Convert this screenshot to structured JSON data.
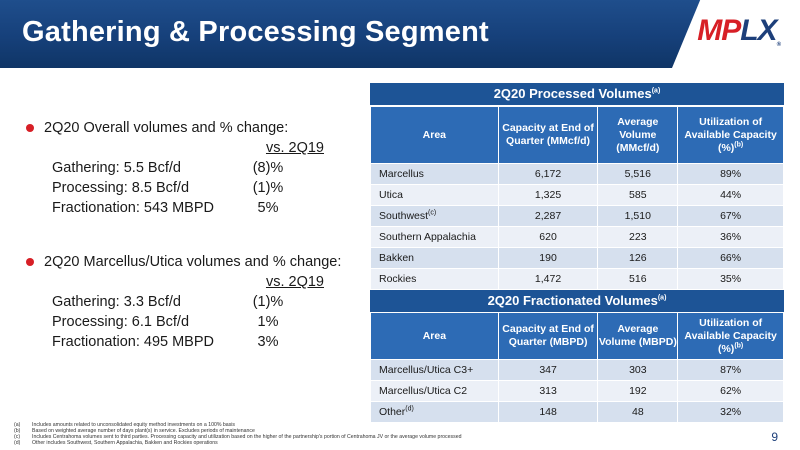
{
  "header": {
    "title": "Gathering & Processing Segment"
  },
  "logo": {
    "text_mp": "MP",
    "text_lx": "LX",
    "tm": "®"
  },
  "left": {
    "block1": {
      "heading": "2Q20 Overall volumes and % change:",
      "vs": "vs. 2Q19",
      "rows": [
        {
          "label": "Gathering: 5.5 Bcf/d",
          "value": "(8)%"
        },
        {
          "label": "Processing: 8.5 Bcf/d",
          "value": "(1)%"
        },
        {
          "label": "Fractionation: 543 MBPD",
          "value": "5%"
        }
      ]
    },
    "block2": {
      "heading": "2Q20 Marcellus/Utica volumes and % change:",
      "vs": "vs. 2Q19",
      "rows": [
        {
          "label": "Gathering: 3.3 Bcf/d",
          "value": "(1)%"
        },
        {
          "label": "Processing: 6.1 Bcf/d",
          "value": "1%"
        },
        {
          "label": "Fractionation: 495 MBPD",
          "value": "3%"
        }
      ]
    }
  },
  "processed": {
    "title": "2Q20 Processed Volumes",
    "title_note": "(a)",
    "headers": [
      "Area",
      "Capacity at End of Quarter (MMcf/d)",
      "Average Volume (MMcf/d)",
      "Utilization of Available Capacity (%)"
    ],
    "util_note": "(b)",
    "rows": [
      {
        "area": "Marcellus",
        "note": "",
        "capacity": "6,172",
        "volume": "5,516",
        "util": "89%"
      },
      {
        "area": "Utica",
        "note": "",
        "capacity": "1,325",
        "volume": "585",
        "util": "44%"
      },
      {
        "area": "Southwest",
        "note": "(c)",
        "capacity": "2,287",
        "volume": "1,510",
        "util": "67%"
      },
      {
        "area": "Southern Appalachia",
        "note": "",
        "capacity": "620",
        "volume": "223",
        "util": "36%"
      },
      {
        "area": "Bakken",
        "note": "",
        "capacity": "190",
        "volume": "126",
        "util": "66%"
      },
      {
        "area": "Rockies",
        "note": "",
        "capacity": "1,472",
        "volume": "516",
        "util": "35%"
      }
    ]
  },
  "fractionated": {
    "title": "2Q20 Fractionated Volumes",
    "title_note": "(a)",
    "headers": [
      "Area",
      "Capacity at End of Quarter (MBPD)",
      "Average Volume (MBPD)",
      "Utilization of Available Capacity (%)"
    ],
    "util_note": "(b)",
    "rows": [
      {
        "area": "Marcellus/Utica C3+",
        "note": "",
        "capacity": "347",
        "volume": "303",
        "util": "87%"
      },
      {
        "area": "Marcellus/Utica C2",
        "note": "",
        "capacity": "313",
        "volume": "192",
        "util": "62%"
      },
      {
        "area": "Other",
        "note": "(d)",
        "capacity": "148",
        "volume": "48",
        "util": "32%"
      }
    ]
  },
  "footnotes": [
    {
      "key": "(a)",
      "text": "Includes amounts related to unconsolidated equity method investments on a 100% basis"
    },
    {
      "key": "(b)",
      "text": "Based on weighted average number of days plant(s) in service. Excludes periods of maintenance"
    },
    {
      "key": "(c)",
      "text": "Includes Centrahoma volumes sent to third parties. Processing capacity and utilization based on the higher of the partnership's portion of Centrahoma JV or the average volume processed"
    },
    {
      "key": "(d)",
      "text": "Other includes Southwest, Southern Appalachia, Bakken and Rockies operations"
    }
  ],
  "page_number": "9"
}
